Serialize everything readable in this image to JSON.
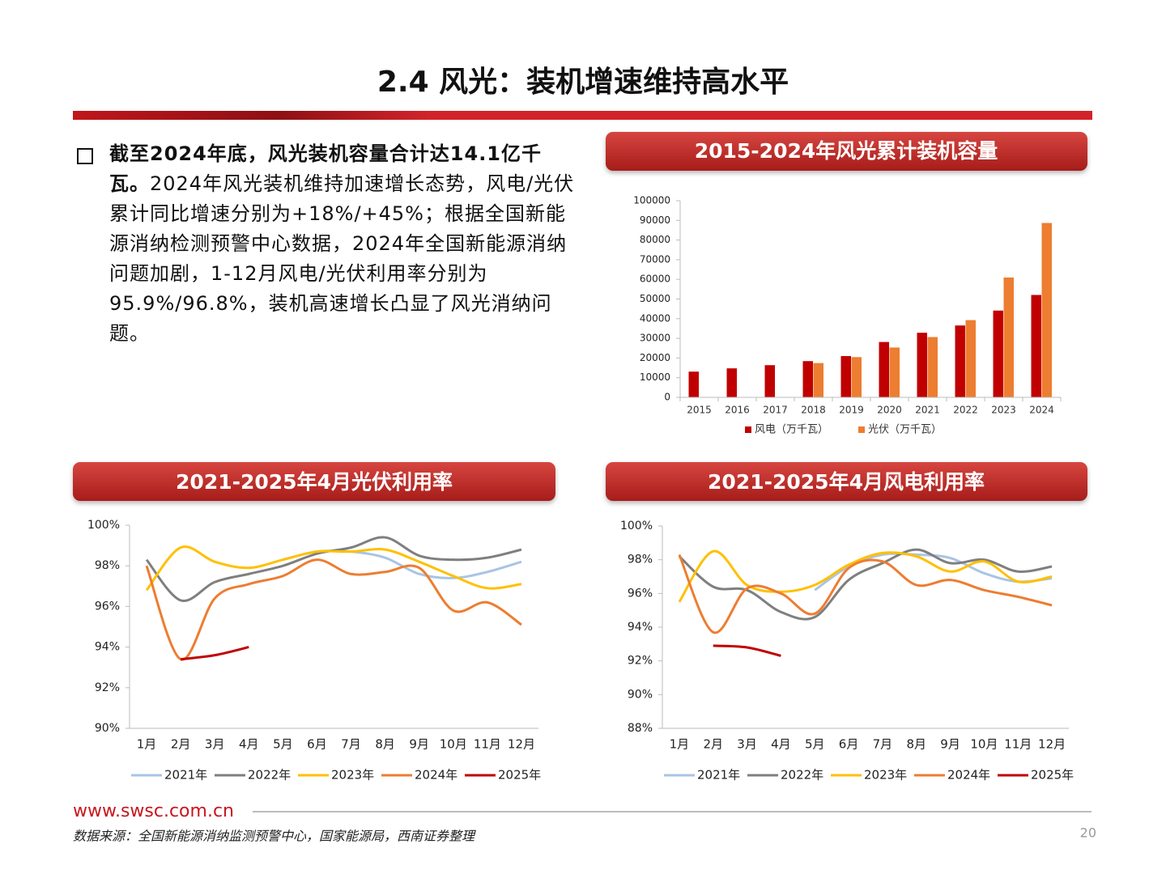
{
  "title": "2.4 风光：装机增速维持高水平",
  "bullet": {
    "bold": "截至2024年底，风光装机容量合计达14.1亿千瓦。",
    "text": "2024年风光装机维持加速增长态势，风电/光伏累计同比增速分别为+18%/+45%；根据全国新能源消纳检测预警中心数据，2024年全国新能源消纳问题加剧，1-12月风电/光伏利用率分别为95.9%/96.8%，装机高速增长凸显了风光消纳问题。"
  },
  "chart_data": [
    {
      "type": "bar",
      "title": "2015-2024年风光累计装机容量",
      "categories": [
        "2015",
        "2016",
        "2017",
        "2018",
        "2019",
        "2020",
        "2021",
        "2022",
        "2023",
        "2024"
      ],
      "series": [
        {
          "name": "风电（万千瓦）",
          "color": "#c00000",
          "values": [
            13075,
            14747,
            16367,
            18426,
            21005,
            28153,
            32848,
            36544,
            44134,
            52068
          ]
        },
        {
          "name": "光伏（万千瓦）",
          "color": "#ed7d31",
          "values": [
            null,
            null,
            null,
            17433,
            20468,
            25343,
            30656,
            39261,
            60949,
            88666
          ]
        }
      ],
      "ylim": [
        0,
        100000
      ],
      "yticks": [
        0,
        10000,
        20000,
        30000,
        40000,
        50000,
        60000,
        70000,
        80000,
        90000,
        100000
      ],
      "grid": false,
      "legend": "bottom"
    },
    {
      "type": "line",
      "title": "2021-2025年4月光伏利用率",
      "categories": [
        "1月",
        "2月",
        "3月",
        "4月",
        "5月",
        "6月",
        "7月",
        "8月",
        "9月",
        "10月",
        "11月",
        "12月"
      ],
      "series": [
        {
          "name": "2021年",
          "color": "#a9c4e4",
          "values": [
            null,
            null,
            null,
            null,
            98.3,
            98.7,
            98.7,
            98.4,
            97.6,
            97.4,
            97.7,
            98.2
          ]
        },
        {
          "name": "2022年",
          "color": "#7f7f7f",
          "values": [
            98.3,
            96.3,
            97.2,
            97.6,
            98.0,
            98.6,
            98.9,
            99.4,
            98.5,
            98.3,
            98.4,
            98.8
          ]
        },
        {
          "name": "2023年",
          "color": "#ffc000",
          "values": [
            96.8,
            98.9,
            98.2,
            97.9,
            98.3,
            98.7,
            98.7,
            98.8,
            98.2,
            97.5,
            96.9,
            97.1
          ]
        },
        {
          "name": "2024年",
          "color": "#ed7d31",
          "values": [
            98.0,
            93.4,
            96.4,
            97.1,
            97.5,
            98.3,
            97.6,
            97.7,
            97.9,
            95.8,
            96.2,
            95.1
          ]
        },
        {
          "name": "2025年",
          "color": "#c00000",
          "values": [
            null,
            93.4,
            93.6,
            94.0,
            null,
            null,
            null,
            null,
            null,
            null,
            null,
            null
          ]
        }
      ],
      "ylim": [
        90,
        100
      ],
      "yticks": [
        {
          "value": 90,
          "label": "90%"
        },
        {
          "value": 92,
          "label": "92%"
        },
        {
          "value": 94,
          "label": "94%"
        },
        {
          "value": 96,
          "label": "96%"
        },
        {
          "value": 98,
          "label": "98%"
        },
        {
          "value": 100,
          "label": "100%"
        }
      ],
      "grid": false,
      "legend": "bottom"
    },
    {
      "type": "line",
      "title": "2021-2025年4月风电利用率",
      "categories": [
        "1月",
        "2月",
        "3月",
        "4月",
        "5月",
        "6月",
        "7月",
        "8月",
        "9月",
        "10月",
        "11月",
        "12月"
      ],
      "series": [
        {
          "name": "2021年",
          "color": "#a9c4e4",
          "values": [
            null,
            null,
            null,
            null,
            96.2,
            97.6,
            98.3,
            98.3,
            98.1,
            97.2,
            96.7,
            96.9
          ]
        },
        {
          "name": "2022年",
          "color": "#7f7f7f",
          "values": [
            98.2,
            96.4,
            96.2,
            94.9,
            94.6,
            96.8,
            97.8,
            98.6,
            97.8,
            98.0,
            97.3,
            97.6
          ]
        },
        {
          "name": "2023年",
          "color": "#ffc000",
          "values": [
            95.5,
            98.5,
            96.5,
            96.1,
            96.5,
            97.7,
            98.4,
            98.2,
            97.3,
            97.9,
            96.7,
            97.0
          ]
        },
        {
          "name": "2024年",
          "color": "#ed7d31",
          "values": [
            98.3,
            93.7,
            96.3,
            96.0,
            94.8,
            97.5,
            97.9,
            96.5,
            96.8,
            96.2,
            95.8,
            95.3
          ]
        },
        {
          "name": "2025年",
          "color": "#c00000",
          "values": [
            null,
            92.9,
            92.8,
            92.3,
            null,
            null,
            null,
            null,
            null,
            null,
            null,
            null
          ]
        }
      ],
      "ylim": [
        88,
        100
      ],
      "yticks": [
        {
          "value": 88,
          "label": "88%"
        },
        {
          "value": 90,
          "label": "90%"
        },
        {
          "value": 92,
          "label": "92%"
        },
        {
          "value": 94,
          "label": "94%"
        },
        {
          "value": 96,
          "label": "96%"
        },
        {
          "value": 98,
          "label": "98%"
        },
        {
          "value": 100,
          "label": "100%"
        }
      ],
      "grid": false,
      "legend": "bottom"
    }
  ],
  "footer": {
    "url": "www.swsc.com.cn",
    "source": "数据来源：全国新能源消纳监测预警中心，国家能源局，西南证券整理",
    "page": 20
  }
}
